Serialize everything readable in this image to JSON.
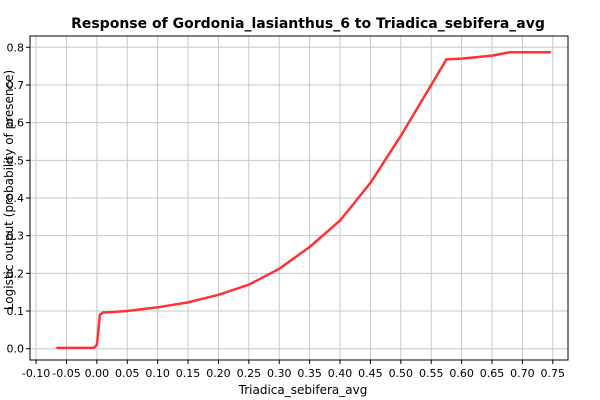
{
  "chart_data": {
    "type": "line",
    "title": "Response of Gordonia_lasianthus_6 to Triadica_sebifera_avg",
    "xlabel": "Triadica_sebifera_avg",
    "ylabel": "Logistic output (probability of presence)",
    "xlim": [
      -0.11,
      0.775
    ],
    "ylim": [
      -0.03,
      0.83
    ],
    "xticks": [
      "-0.10",
      "-0.05",
      "0.00",
      "0.05",
      "0.10",
      "0.15",
      "0.20",
      "0.25",
      "0.30",
      "0.35",
      "0.40",
      "0.45",
      "0.50",
      "0.55",
      "0.60",
      "0.65",
      "0.70",
      "0.75"
    ],
    "yticks": [
      "0.0",
      "0.1",
      "0.2",
      "0.3",
      "0.4",
      "0.5",
      "0.6",
      "0.7",
      "0.8"
    ],
    "grid": true,
    "series": [
      {
        "color": "#ff3333",
        "x": [
          -0.065,
          -0.03,
          -0.005,
          0.0,
          0.005,
          0.01,
          0.02,
          0.05,
          0.1,
          0.15,
          0.2,
          0.25,
          0.3,
          0.35,
          0.4,
          0.45,
          0.5,
          0.55,
          0.575,
          0.6,
          0.65,
          0.68,
          0.745
        ],
        "y": [
          0.002,
          0.002,
          0.002,
          0.01,
          0.09,
          0.096,
          0.097,
          0.1,
          0.11,
          0.123,
          0.143,
          0.17,
          0.212,
          0.27,
          0.34,
          0.44,
          0.565,
          0.7,
          0.768,
          0.77,
          0.778,
          0.787,
          0.787
        ]
      }
    ]
  }
}
